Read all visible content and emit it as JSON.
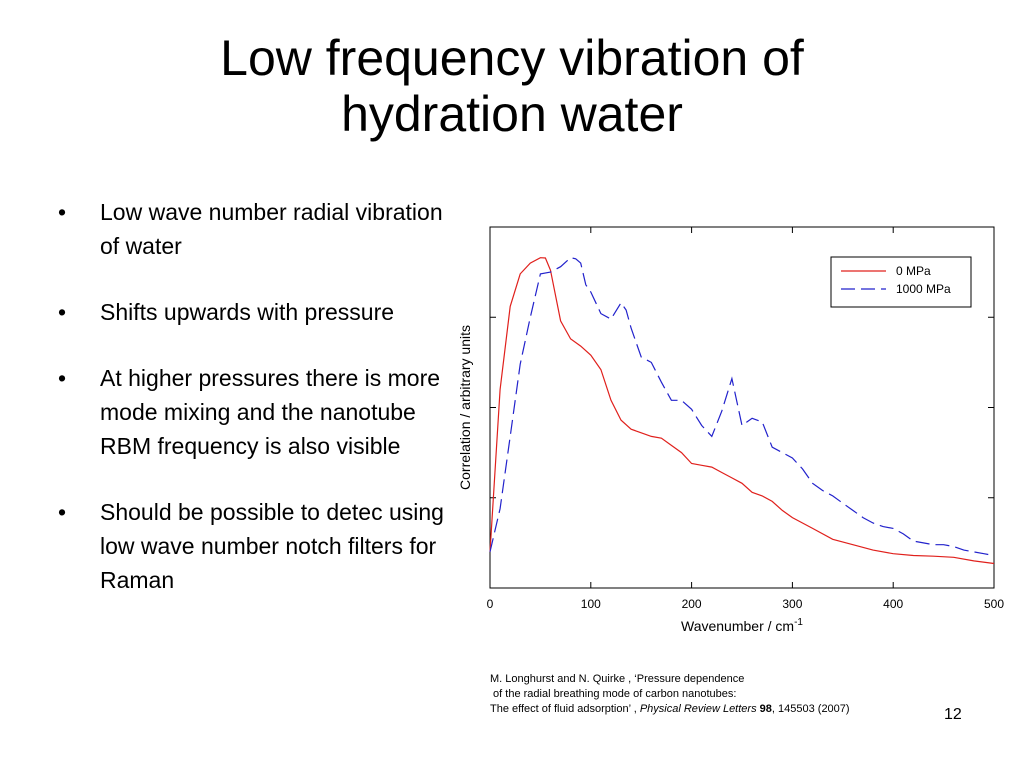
{
  "slide": {
    "title_line1": "Low frequency vibration of",
    "title_line2": "hydration water",
    "bullets": [
      "Low wave number radial vibration of water",
      "Shifts upwards with pressure",
      "At higher pressures there is more mode mixing and the nanotube RBM frequency is also visible",
      "Should be possible to detec using low wave number notch filters for Raman"
    ],
    "bullet_symbol": "•",
    "citation": {
      "line1": "M. Longhurst and N. Quirke , ‘Pressure dependence",
      "line2": " of the radial breathing mode of carbon nanotubes:",
      "line3_plain": "The effect of fluid adsorption’ , ",
      "line3_journal": "Physical Review Letters",
      "line3_volume": "98",
      "line3_rest": ", 145503 (2007)"
    },
    "slide_number": "12"
  },
  "chart_data": {
    "type": "line",
    "title": "",
    "xlabel": "Wavenumber / cm",
    "xlabel_superscript": "-1",
    "ylabel": "Correlation / arbitrary units",
    "xlim": [
      0,
      500
    ],
    "ylim": [
      0,
      1
    ],
    "xticks": [
      0,
      100,
      200,
      300,
      400,
      500
    ],
    "xtick_labels": [
      "0",
      "100",
      "200",
      "300",
      "400",
      "500"
    ],
    "yticks": [
      0.25,
      0.5,
      0.75
    ],
    "ytick_labels_shown": false,
    "grid": false,
    "legend_position": "top-right",
    "series": [
      {
        "name": "0 MPa",
        "color": "#e0201c",
        "style": "solid",
        "x": [
          0,
          10,
          20,
          30,
          40,
          50,
          55,
          60,
          70,
          80,
          90,
          100,
          110,
          120,
          130,
          140,
          150,
          160,
          170,
          180,
          190,
          200,
          210,
          220,
          230,
          240,
          250,
          260,
          270,
          280,
          290,
          300,
          320,
          340,
          360,
          380,
          400,
          420,
          440,
          460,
          480,
          500
        ],
        "y": [
          0.1,
          0.55,
          0.78,
          0.87,
          0.9,
          0.915,
          0.914,
          0.88,
          0.74,
          0.69,
          0.67,
          0.645,
          0.605,
          0.52,
          0.465,
          0.44,
          0.43,
          0.42,
          0.415,
          0.395,
          0.375,
          0.345,
          0.34,
          0.335,
          0.32,
          0.305,
          0.29,
          0.265,
          0.255,
          0.24,
          0.215,
          0.195,
          0.165,
          0.135,
          0.12,
          0.105,
          0.095,
          0.09,
          0.088,
          0.085,
          0.075,
          0.068
        ]
      },
      {
        "name": "1000 MPa",
        "color": "#2222cc",
        "style": "dashed",
        "x": [
          0,
          10,
          20,
          30,
          40,
          50,
          60,
          70,
          80,
          85,
          90,
          95,
          100,
          110,
          120,
          130,
          135,
          140,
          150,
          160,
          170,
          180,
          190,
          200,
          210,
          220,
          230,
          240,
          250,
          260,
          270,
          280,
          290,
          300,
          310,
          320,
          330,
          340,
          350,
          360,
          370,
          380,
          390,
          400,
          410,
          420,
          430,
          440,
          450,
          460,
          470,
          480,
          490,
          500
        ],
        "y": [
          0.1,
          0.22,
          0.42,
          0.62,
          0.75,
          0.87,
          0.875,
          0.89,
          0.915,
          0.912,
          0.9,
          0.84,
          0.82,
          0.76,
          0.745,
          0.79,
          0.77,
          0.72,
          0.64,
          0.625,
          0.57,
          0.52,
          0.52,
          0.495,
          0.45,
          0.42,
          0.49,
          0.58,
          0.45,
          0.47,
          0.46,
          0.39,
          0.375,
          0.36,
          0.33,
          0.29,
          0.27,
          0.255,
          0.235,
          0.215,
          0.195,
          0.18,
          0.17,
          0.165,
          0.15,
          0.13,
          0.125,
          0.12,
          0.12,
          0.115,
          0.105,
          0.1,
          0.095,
          0.09
        ]
      }
    ]
  }
}
